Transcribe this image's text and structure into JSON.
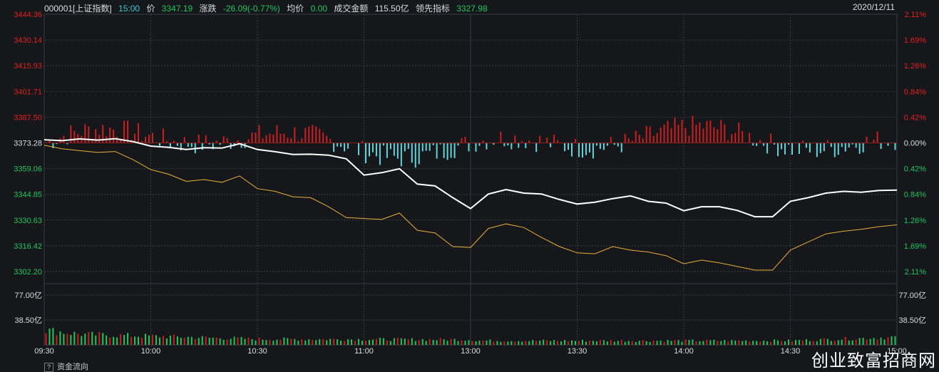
{
  "header": {
    "code": "000001[上证指数]",
    "time": "15:00",
    "price_label": "价",
    "price": "3347.19",
    "change_label": "涨跌",
    "change": "-26.09(-0.77%)",
    "avg_label": "均价",
    "avg": "0.00",
    "turnover_label": "成交金额",
    "turnover": "115.50亿",
    "lead_label": "领先指标",
    "lead": "3327.98",
    "date": "2020/12/11"
  },
  "bottom_tab": {
    "label": "资金流向",
    "help_icon": "?"
  },
  "watermark": "创业致富招商网",
  "colors": {
    "up": "#e02020",
    "down": "#22c55e",
    "zero": "#dddddd",
    "price_line": "#ffffff",
    "lead_line": "#e8b13a",
    "bar_up": "#cc1f1f",
    "bar_down": "#5fd6dc",
    "bg": "#16171b",
    "grid": "#3a3b40"
  },
  "chart_data": {
    "type": "line",
    "title": "000001[上证指数]",
    "prev_close": 3373.28,
    "y_ticks_left": [
      "3444.36",
      "3430.14",
      "3415.93",
      "3401.71",
      "3387.50",
      "3373.28",
      "3359.06",
      "3344.85",
      "3330.63",
      "3316.42",
      "3302.20"
    ],
    "y_ticks_right": [
      "2.11%",
      "1.69%",
      "1.26%",
      "0.84%",
      "0.42%",
      "0.00%",
      "0.42%",
      "0.84%",
      "1.26%",
      "1.69%",
      "2.11%"
    ],
    "ylim": [
      3302.2,
      3444.36
    ],
    "x_ticks": [
      "09:30",
      "10:00",
      "10:30",
      "11:00",
      "13:00",
      "13:30",
      "14:00",
      "14:30",
      "15:00"
    ],
    "series": [
      {
        "x": [
          "09:30",
          "09:35",
          "09:40",
          "09:45",
          "09:50",
          "09:55",
          "10:00",
          "10:05",
          "10:10",
          "10:15",
          "10:20",
          "10:25",
          "10:30",
          "10:35",
          "10:40",
          "10:45",
          "10:50",
          "10:55",
          "11:00",
          "11:05",
          "11:10",
          "11:15",
          "11:20",
          "11:25",
          "11:30",
          "13:05",
          "13:10",
          "13:15",
          "13:20",
          "13:25",
          "13:30",
          "13:35",
          "13:40",
          "13:45",
          "13:50",
          "13:55",
          "14:00",
          "14:05",
          "14:10",
          "14:15",
          "14:20",
          "14:25",
          "14:30",
          "14:35",
          "14:40",
          "14:45",
          "14:50",
          "14:55",
          "15:00"
        ],
        "values": [
          3375.0,
          3374.5,
          3375.5,
          3374.8,
          3375.6,
          3374.0,
          3371.5,
          3370.8,
          3369.6,
          3370.6,
          3370.4,
          3372.8,
          3369.6,
          3368.4,
          3366.9,
          3367.0,
          3366.5,
          3364.5,
          3355.5,
          3356.8,
          3359.0,
          3350.5,
          3349.5,
          3343.0,
          3337.0,
          3345.0,
          3347.5,
          3345.5,
          3345.0,
          3342.0,
          3339.5,
          3340.5,
          3342.5,
          3344.0,
          3341.0,
          3340.0,
          3335.8,
          3338.0,
          3338.0,
          3336.0,
          3332.5,
          3332.5,
          3341.0,
          3343.0,
          3345.5,
          3346.5,
          3346.0,
          3347.0,
          3347.19
        ]
      },
      {
        "x": [
          "09:30",
          "09:35",
          "09:40",
          "09:45",
          "09:50",
          "09:55",
          "10:00",
          "10:05",
          "10:10",
          "10:15",
          "10:20",
          "10:25",
          "10:30",
          "10:35",
          "10:40",
          "10:45",
          "10:50",
          "10:55",
          "11:00",
          "11:05",
          "11:10",
          "11:15",
          "11:20",
          "11:25",
          "11:30",
          "13:05",
          "13:10",
          "13:15",
          "13:20",
          "13:25",
          "13:30",
          "13:35",
          "13:40",
          "13:45",
          "13:50",
          "13:55",
          "14:00",
          "14:05",
          "14:10",
          "14:15",
          "14:20",
          "14:25",
          "14:30",
          "14:35",
          "14:40",
          "14:45",
          "14:50",
          "14:55",
          "15:00"
        ],
        "values": [
          3372.0,
          3370.0,
          3369.0,
          3368.0,
          3368.5,
          3364.0,
          3358.5,
          3356.0,
          3352.0,
          3353.0,
          3351.5,
          3355.0,
          3348.0,
          3346.5,
          3343.5,
          3343.0,
          3338.0,
          3332.0,
          3331.5,
          3331.0,
          3334.5,
          3325.0,
          3323.5,
          3316.0,
          3315.5,
          3326.0,
          3328.5,
          3326.5,
          3321.0,
          3316.0,
          3312.5,
          3312.0,
          3316.0,
          3314.0,
          3313.0,
          3311.0,
          3306.5,
          3308.5,
          3307.0,
          3305.0,
          3303.0,
          3303.0,
          3314.0,
          3318.5,
          3323.0,
          3324.5,
          3325.5,
          3327.0,
          3327.98
        ]
      }
    ],
    "volume": {
      "y_ticks": [
        "77.00亿",
        "38.50亿"
      ],
      "ylim": [
        0,
        115.5
      ],
      "count": 240,
      "levels": [
        {
          "x": "09:30",
          "value": 28
        },
        {
          "x": "09:40",
          "value": 20
        },
        {
          "x": "10:30",
          "value": 11
        },
        {
          "x": "11:30",
          "value": 10
        },
        {
          "x": "13:00",
          "value": 8
        },
        {
          "x": "14:30",
          "value": 8
        },
        {
          "x": "15:00",
          "value": 15
        }
      ]
    },
    "grid": true
  }
}
